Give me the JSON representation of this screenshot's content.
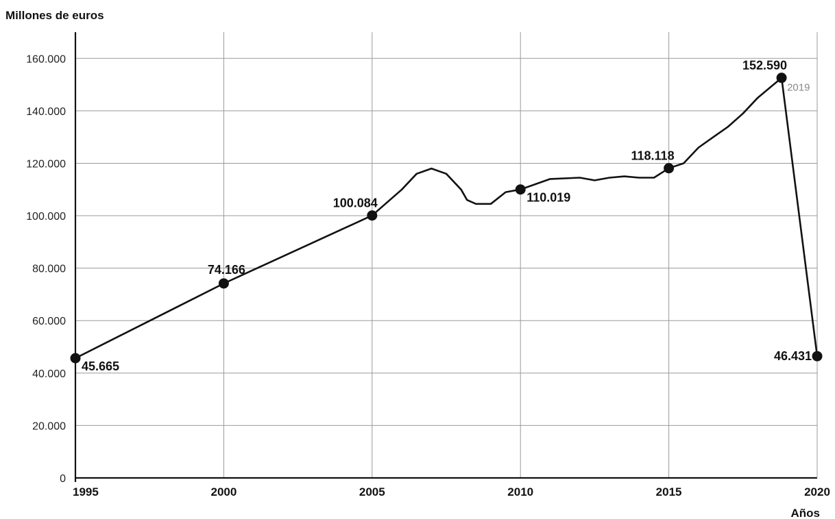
{
  "chart_data": {
    "type": "line",
    "ylabel": "Millones de euros",
    "xlabel": "Años",
    "xlim": [
      1995,
      2020
    ],
    "ylim": [
      0,
      170000
    ],
    "y_ticks": [
      0,
      20000,
      40000,
      60000,
      80000,
      100000,
      120000,
      140000,
      160000
    ],
    "y_tick_labels": [
      "0",
      "20.000",
      "40.000",
      "60.000",
      "80.000",
      "100.000",
      "120.000",
      "140.000",
      "160.000"
    ],
    "x_ticks": [
      1995,
      2000,
      2005,
      2010,
      2015,
      2020
    ],
    "x_tick_labels": [
      "1995",
      "2000",
      "2005",
      "2010",
      "2015",
      "2020"
    ],
    "grid": true,
    "series": [
      {
        "color": "#111111",
        "points": [
          [
            1995,
            45665
          ],
          [
            2000,
            74166
          ],
          [
            2005,
            100084
          ],
          [
            2006,
            110000
          ],
          [
            2006.5,
            116000
          ],
          [
            2007,
            118000
          ],
          [
            2007.5,
            116000
          ],
          [
            2008,
            110000
          ],
          [
            2008.2,
            106000
          ],
          [
            2008.5,
            104500
          ],
          [
            2009,
            104500
          ],
          [
            2009.5,
            109000
          ],
          [
            2010,
            110019
          ],
          [
            2011,
            114000
          ],
          [
            2012,
            114500
          ],
          [
            2012.5,
            113500
          ],
          [
            2013,
            114500
          ],
          [
            2013.5,
            115000
          ],
          [
            2014,
            114500
          ],
          [
            2014.5,
            114500
          ],
          [
            2015,
            118118
          ],
          [
            2015.5,
            120000
          ],
          [
            2016,
            126000
          ],
          [
            2016.5,
            130000
          ],
          [
            2017,
            134000
          ],
          [
            2017.5,
            139000
          ],
          [
            2018,
            145000
          ],
          [
            2018.8,
            152590
          ],
          [
            2020,
            46431
          ]
        ],
        "markers": [
          {
            "x": 1995,
            "y": 45665,
            "label": "45.665",
            "pos": "below-right"
          },
          {
            "x": 2000,
            "y": 74166,
            "label": "74.166",
            "pos": "above"
          },
          {
            "x": 2005,
            "y": 100084,
            "label": "100.084",
            "pos": "above-left"
          },
          {
            "x": 2010,
            "y": 110019,
            "label": "110.019",
            "pos": "below-right"
          },
          {
            "x": 2015,
            "y": 118118,
            "label": "118.118",
            "pos": "above-left"
          },
          {
            "x": 2018.8,
            "y": 152590,
            "label": "152.590",
            "pos": "above-left",
            "note": "2019"
          },
          {
            "x": 2020,
            "y": 46431,
            "label": "46.431",
            "pos": "left"
          }
        ]
      }
    ]
  }
}
